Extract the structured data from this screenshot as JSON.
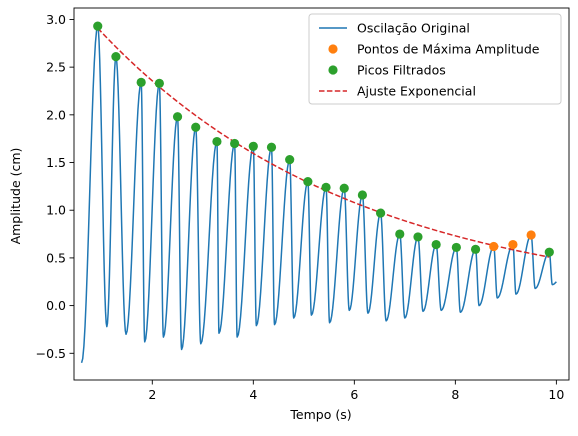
{
  "chart_data": {
    "type": "line",
    "title": "",
    "xlabel": "Tempo (s)",
    "ylabel": "Amplitude (cm)",
    "xlim": [
      0.45,
      10.25
    ],
    "ylim": [
      -0.78,
      3.12
    ],
    "xticks": [
      2,
      4,
      6,
      8,
      10
    ],
    "yticks": [
      -0.5,
      0.0,
      0.5,
      1.0,
      1.5,
      2.0,
      2.5,
      3.0
    ],
    "xtick_labels": [
      "2",
      "4",
      "6",
      "8",
      "10"
    ],
    "ytick_labels": [
      "−0.5",
      "0.0",
      "0.5",
      "1.0",
      "1.5",
      "2.0",
      "2.5",
      "3.0"
    ],
    "grid": false,
    "legend_position": "top-right",
    "series": [
      {
        "name": "Oscilação Original",
        "kind": "line",
        "color": "#1f77b4",
        "period": 0.35,
        "first_peak_t": 0.92,
        "peaks": [
          [
            0.92,
            2.93
          ],
          [
            1.28,
            2.61
          ],
          [
            1.78,
            2.34
          ],
          [
            2.14,
            2.33
          ],
          [
            2.5,
            1.98
          ],
          [
            2.86,
            1.87
          ],
          [
            3.28,
            1.72
          ],
          [
            3.63,
            1.7
          ],
          [
            4.0,
            1.67
          ],
          [
            4.36,
            1.66
          ],
          [
            4.72,
            1.53
          ],
          [
            5.08,
            1.3
          ],
          [
            5.44,
            1.24
          ],
          [
            5.8,
            1.23
          ],
          [
            6.16,
            1.16
          ],
          [
            6.52,
            0.97
          ],
          [
            6.9,
            0.75
          ],
          [
            7.26,
            0.72
          ],
          [
            7.62,
            0.64
          ],
          [
            8.02,
            0.61
          ],
          [
            8.4,
            0.59
          ],
          [
            8.76,
            0.62
          ],
          [
            9.14,
            0.64
          ],
          [
            9.5,
            0.74
          ],
          [
            9.86,
            0.56
          ]
        ],
        "troughs": [
          [
            0.6,
            -0.6
          ],
          [
            1.1,
            -0.22
          ],
          [
            1.48,
            -0.3
          ],
          [
            1.85,
            -0.38
          ],
          [
            2.22,
            -0.33
          ],
          [
            2.58,
            -0.46
          ],
          [
            2.96,
            -0.4
          ],
          [
            3.32,
            -0.29
          ],
          [
            3.68,
            -0.33
          ],
          [
            4.06,
            -0.21
          ],
          [
            4.42,
            -0.2
          ],
          [
            4.8,
            -0.13
          ],
          [
            5.15,
            -0.1
          ],
          [
            5.51,
            -0.18
          ],
          [
            5.9,
            -0.05
          ],
          [
            6.27,
            -0.08
          ],
          [
            6.63,
            -0.16
          ],
          [
            7.0,
            -0.13
          ],
          [
            7.36,
            -0.06
          ],
          [
            7.72,
            -0.05
          ],
          [
            8.1,
            -0.07
          ],
          [
            8.47,
            0.0
          ],
          [
            8.83,
            0.08
          ],
          [
            9.2,
            0.12
          ],
          [
            9.58,
            0.18
          ],
          [
            9.92,
            0.22
          ]
        ],
        "end_point": [
          10.0,
          0.25
        ]
      },
      {
        "name": "Pontos de Máxima Amplitude",
        "kind": "marker",
        "color": "#ff7f0e",
        "points": [
          [
            8.76,
            0.62
          ],
          [
            9.14,
            0.64
          ],
          [
            9.5,
            0.74
          ]
        ]
      },
      {
        "name": "Picos Filtrados",
        "kind": "marker",
        "color": "#2ca02c",
        "points": [
          [
            0.92,
            2.93
          ],
          [
            1.28,
            2.61
          ],
          [
            1.78,
            2.34
          ],
          [
            2.14,
            2.33
          ],
          [
            2.5,
            1.98
          ],
          [
            2.86,
            1.87
          ],
          [
            3.28,
            1.72
          ],
          [
            3.63,
            1.7
          ],
          [
            4.0,
            1.67
          ],
          [
            4.36,
            1.66
          ],
          [
            4.72,
            1.53
          ],
          [
            5.08,
            1.3
          ],
          [
            5.44,
            1.24
          ],
          [
            5.8,
            1.23
          ],
          [
            6.16,
            1.16
          ],
          [
            6.52,
            0.97
          ],
          [
            6.9,
            0.75
          ],
          [
            7.26,
            0.72
          ],
          [
            7.62,
            0.64
          ],
          [
            8.02,
            0.61
          ],
          [
            8.4,
            0.59
          ],
          [
            9.86,
            0.56
          ]
        ]
      },
      {
        "name": "Ajuste Exponencial",
        "kind": "dashed-line",
        "color": "#d62728",
        "model": "A*exp(-b*t)",
        "A": 3.48,
        "b": 0.195,
        "t_range": [
          0.92,
          9.86
        ]
      }
    ]
  }
}
